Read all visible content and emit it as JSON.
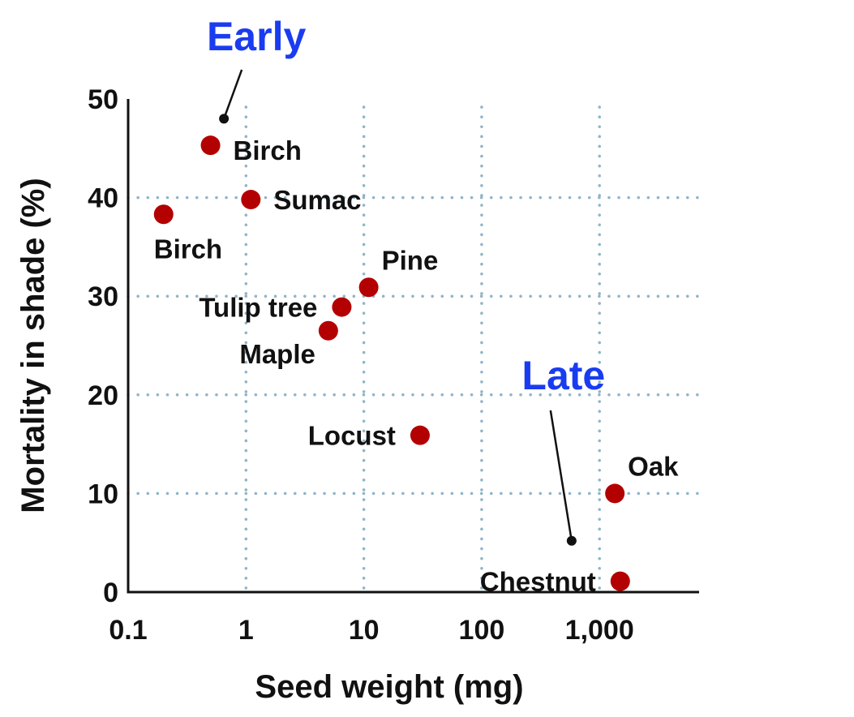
{
  "colors": {
    "marker": "#b30000",
    "annotation": "#1a3cf0",
    "grid": "#8fb4c8",
    "axis": "#111111"
  },
  "chart_data": {
    "type": "scatter",
    "xlabel": "Seed weight (mg)",
    "ylabel": "Mortality in shade (%)",
    "x_scale": "log",
    "xlim": [
      0.1,
      7000
    ],
    "ylim": [
      0,
      50
    ],
    "x_ticks": [
      {
        "value": 0.1,
        "label": "0.1"
      },
      {
        "value": 1,
        "label": "1"
      },
      {
        "value": 10,
        "label": "10"
      },
      {
        "value": 100,
        "label": "100"
      },
      {
        "value": 1000,
        "label": "1,000"
      }
    ],
    "y_ticks": [
      {
        "value": 0,
        "label": "0"
      },
      {
        "value": 10,
        "label": "10"
      },
      {
        "value": 20,
        "label": "20"
      },
      {
        "value": 30,
        "label": "30"
      },
      {
        "value": 40,
        "label": "40"
      },
      {
        "value": 50,
        "label": "50"
      }
    ],
    "grid": "dotted",
    "points": [
      {
        "label": "Birch",
        "x": 0.5,
        "y": 45.3,
        "label_pos": "right-below"
      },
      {
        "label": "Birch",
        "x": 0.2,
        "y": 38.3,
        "label_pos": "below"
      },
      {
        "label": "Sumac",
        "x": 1.1,
        "y": 39.8,
        "label_pos": "right"
      },
      {
        "label": "Pine",
        "x": 11,
        "y": 30.9,
        "label_pos": "above-right"
      },
      {
        "label": "Tulip tree",
        "x": 6.5,
        "y": 28.9,
        "label_pos": "left"
      },
      {
        "label": "Maple",
        "x": 5,
        "y": 26.5,
        "label_pos": "left-below"
      },
      {
        "label": "Locust",
        "x": 30,
        "y": 15.9,
        "label_pos": "left"
      },
      {
        "label": "Oak",
        "x": 1350,
        "y": 10,
        "label_pos": "above-right"
      },
      {
        "label": "Chestnut",
        "x": 1500,
        "y": 1.1,
        "label_pos": "left"
      }
    ],
    "annotations": [
      {
        "text": "Early",
        "x": 0.65,
        "y": 48,
        "position": "top-left"
      },
      {
        "text": "Late",
        "x": 580,
        "y": 5.2,
        "position": "right"
      }
    ]
  }
}
